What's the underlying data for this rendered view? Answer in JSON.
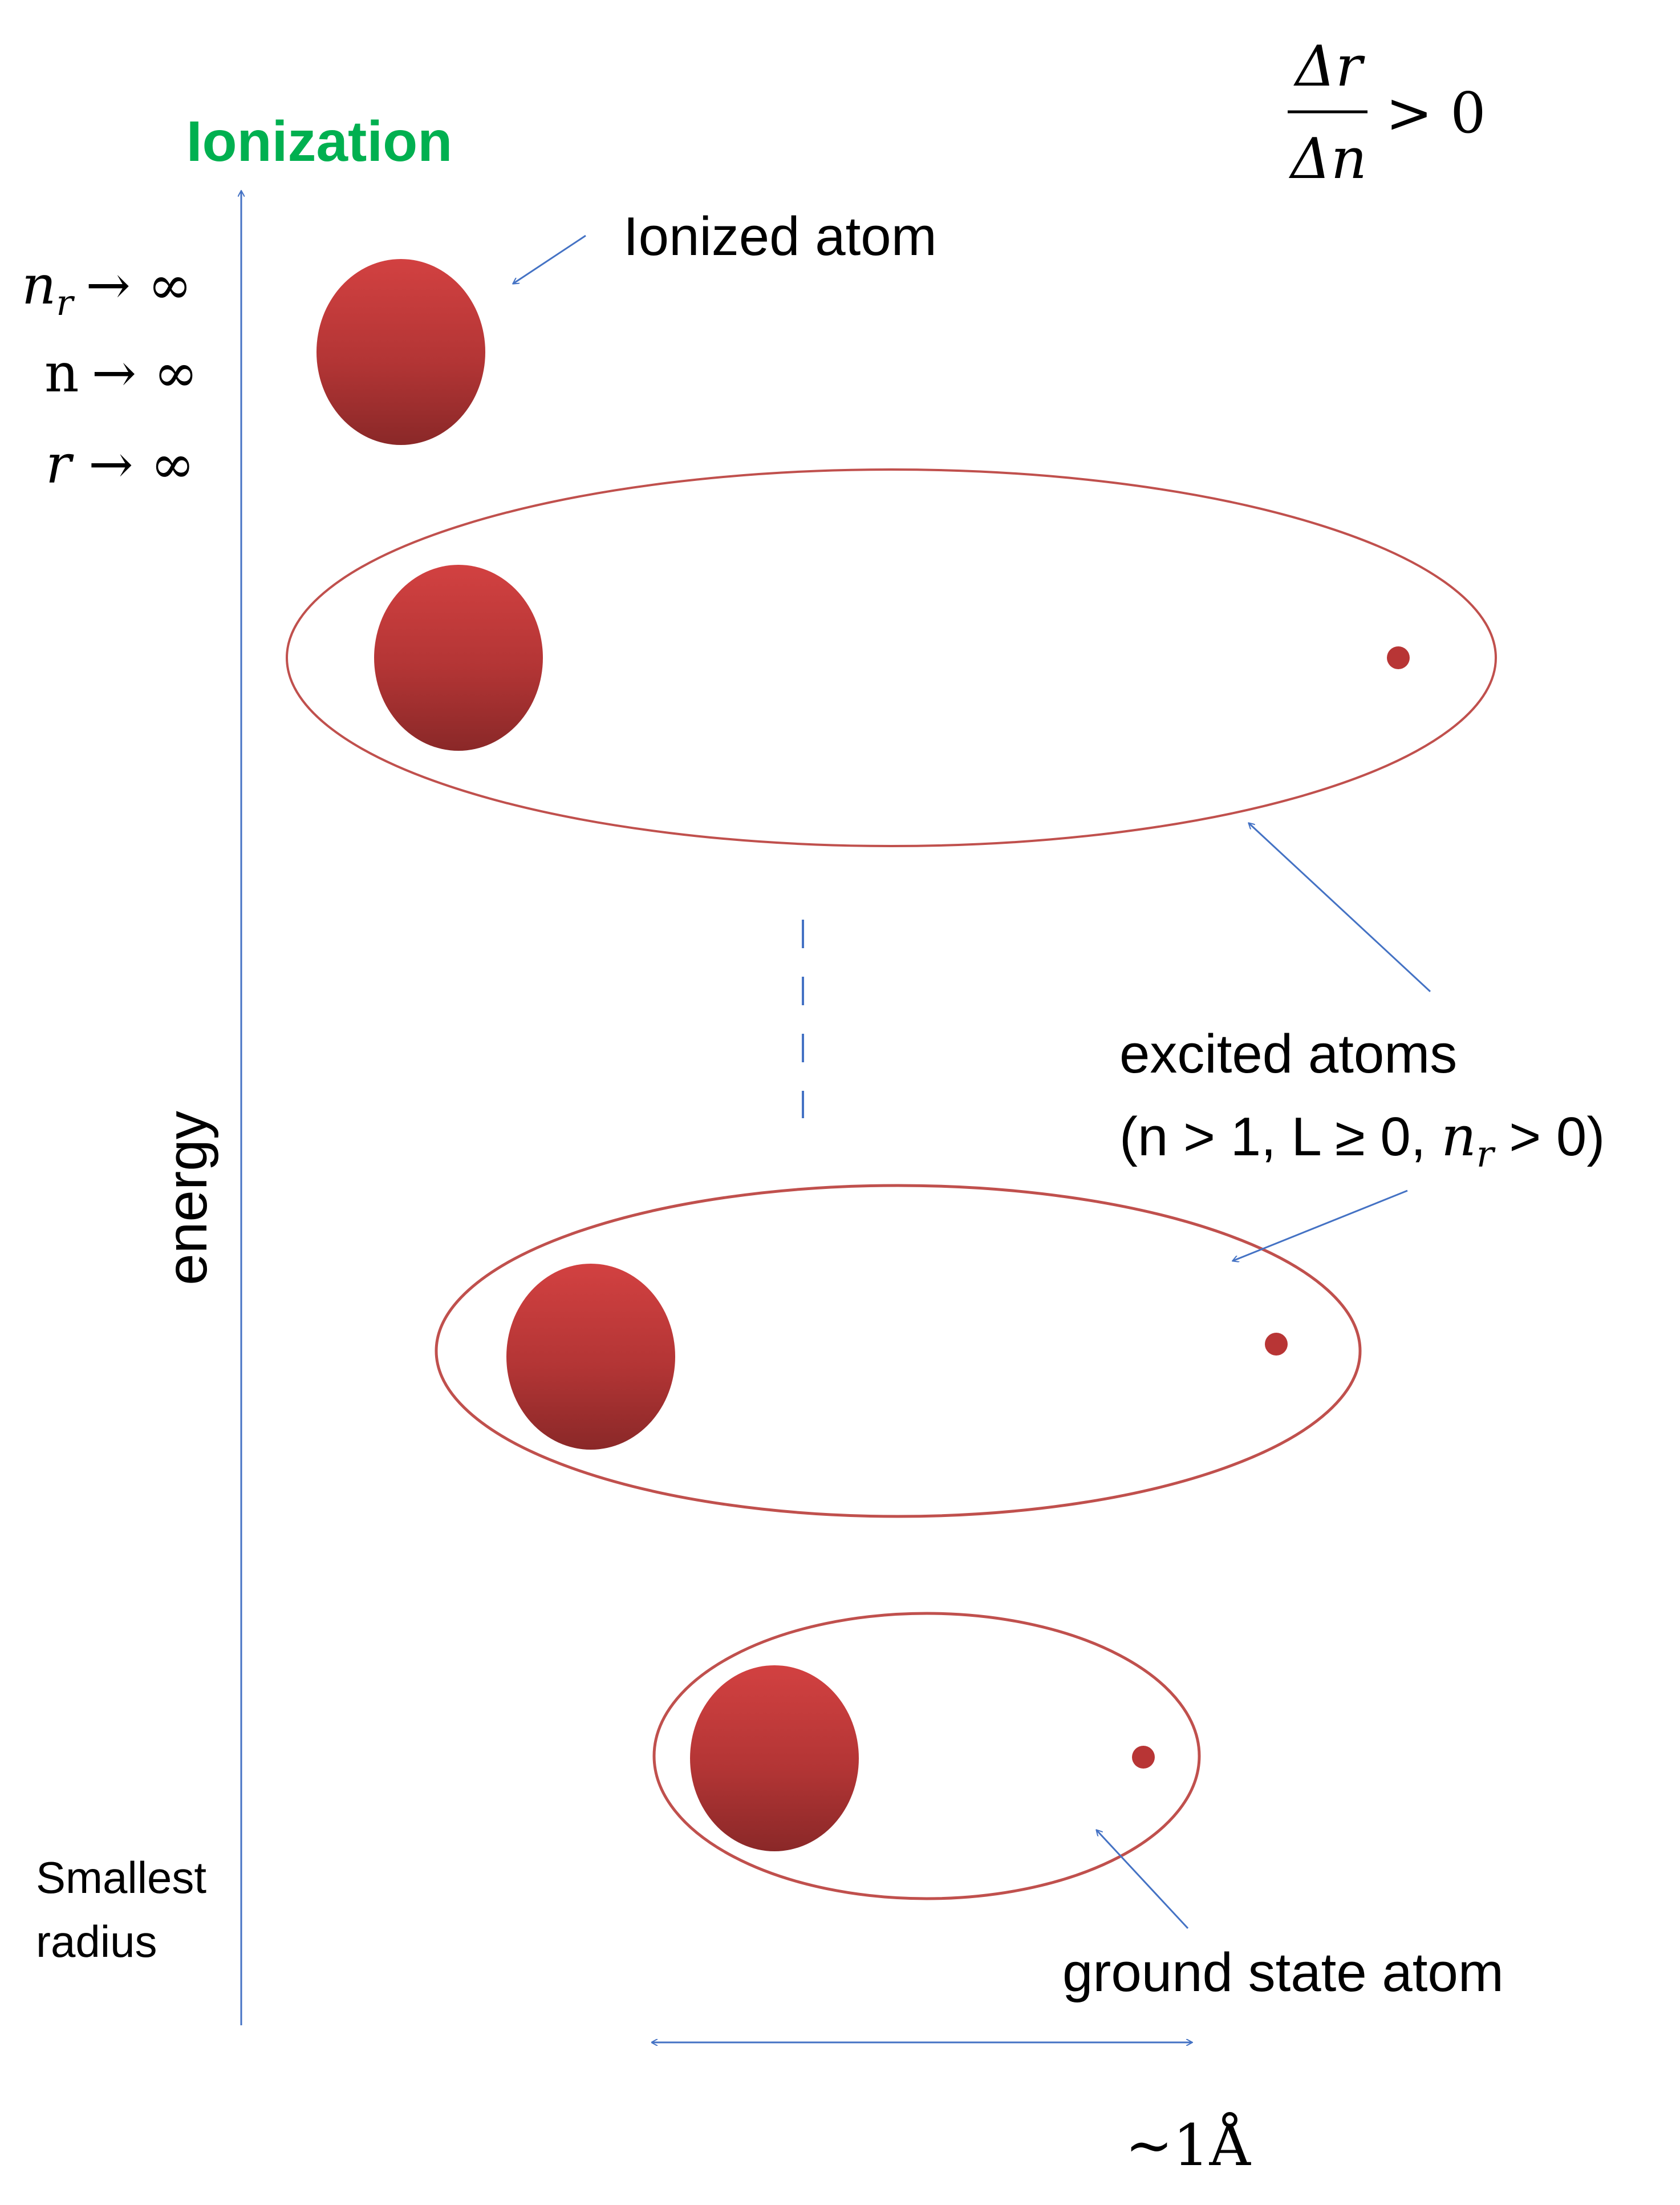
{
  "labels": {
    "ionization": "Ionization",
    "energy": "energy",
    "ionized_atom": "Ionized atom",
    "excited_atoms_line1": "excited atoms",
    "excited_atoms_line2_a": "(n > 1, L ≥ 0, ",
    "excited_atoms_line2_nr": "n",
    "excited_atoms_line2_nr_sub": "r",
    "excited_atoms_line2_b": " > 0)",
    "ground_state_atom": "ground state atom",
    "smallest_line1": "Smallest",
    "smallest_line2": "radius",
    "scale": "~1Å"
  },
  "formula": {
    "numerator": "Δr",
    "denominator": "Δn",
    "relation": "> 0"
  },
  "limits": {
    "nr_var": "n",
    "nr_sub": "r",
    "nr_rel": "→ ∞",
    "n_var": "n",
    "n_rel": "→ ∞",
    "r_var": "r",
    "r_rel": "→ ∞"
  },
  "colors": {
    "ionization": "#00b050",
    "axis": "#4472c4",
    "orbit": "#c0504d",
    "nucleus_top": "#d04040",
    "nucleus_bottom": "#8c2626",
    "text": "#000000"
  }
}
